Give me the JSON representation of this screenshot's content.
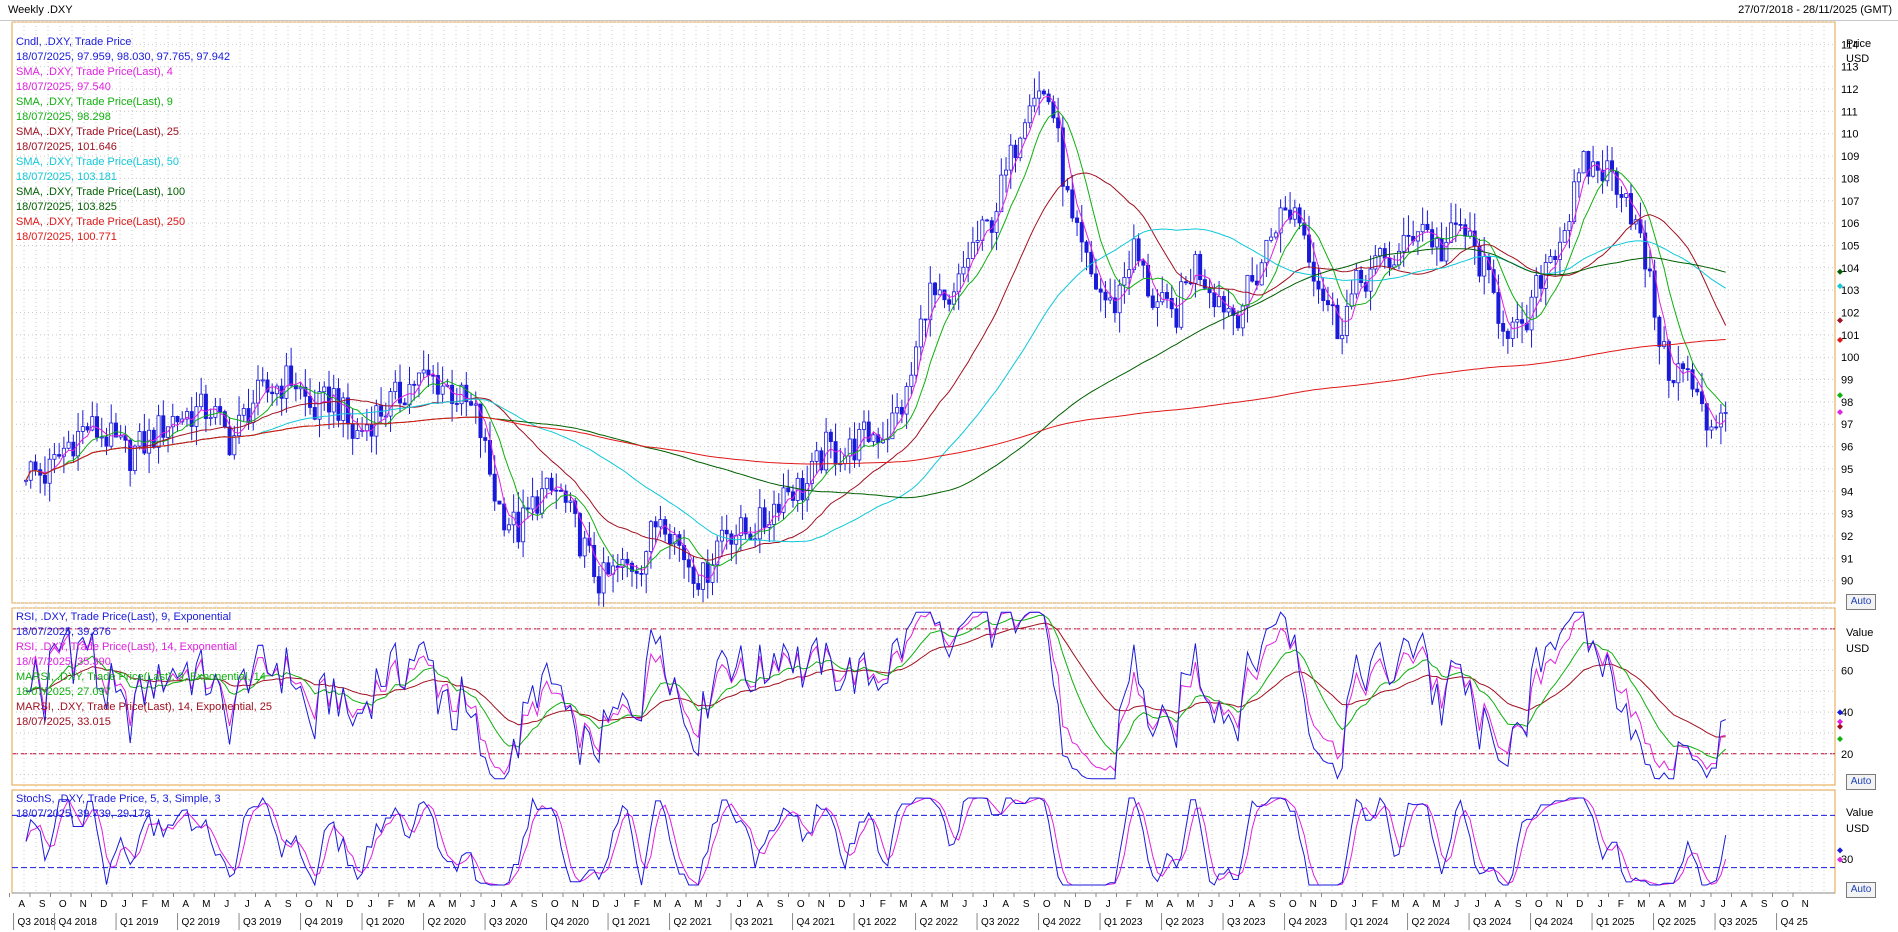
{
  "header": {
    "title": "Weekly .DXY",
    "range": "27/07/2018 - 28/11/2025 (GMT)"
  },
  "auto_label": "Auto",
  "price_panel": {
    "axis_title": "Price",
    "axis_unit": "USD",
    "ticks": [
      "90",
      "91",
      "92",
      "93",
      "94",
      "95",
      "96",
      "97",
      "98",
      "99",
      "100",
      "101",
      "102",
      "103",
      "104",
      "105",
      "106",
      "107",
      "108",
      "109",
      "110",
      "111",
      "112",
      "113",
      "114"
    ],
    "legend": [
      {
        "name": "Cndl, .DXY, Trade Price",
        "value": "18/07/2025, 97.959, 98.030, 97.765, 97.942",
        "color": "#1a1adb",
        "vcolor": "#1a1adb"
      },
      {
        "name": "SMA, .DXY, Trade Price(Last), 4",
        "value": "18/07/2025, 97.540",
        "color": "#e020e0",
        "vcolor": "#e020e0"
      },
      {
        "name": "SMA, .DXY, Trade Price(Last), 9",
        "value": "18/07/2025, 98.298",
        "color": "#10b010",
        "vcolor": "#10b010"
      },
      {
        "name": "SMA, .DXY, Trade Price(Last), 25",
        "value": "18/07/2025, 101.646",
        "color": "#a01020",
        "vcolor": "#a01020"
      },
      {
        "name": "SMA, .DXY, Trade Price(Last), 50",
        "value": "18/07/2025, 103.181",
        "color": "#10c8d8",
        "vcolor": "#10c8d8"
      },
      {
        "name": "SMA, .DXY, Trade Price(Last), 100",
        "value": "18/07/2025, 103.825",
        "color": "#006000",
        "vcolor": "#006000"
      },
      {
        "name": "SMA, .DXY, Trade Price(Last), 250",
        "value": "18/07/2025, 100.771",
        "color": "#e01818",
        "vcolor": "#e01818"
      }
    ]
  },
  "rsi_panel": {
    "axis_title": "Value",
    "axis_unit": "USD",
    "ticks": [
      "20",
      "40",
      "60"
    ],
    "legend": [
      {
        "name": "RSI, .DXY, Trade Price(Last), 9, Exponential",
        "value": "18/07/2025, 39.876",
        "color": "#1a1adb"
      },
      {
        "name": "RSI, .DXY, Trade Price(Last), 14, Exponential",
        "value": "18/07/2025, 35.390",
        "color": "#e020e0"
      },
      {
        "name": "MARSI, .DXY, Trade Price(Last), 9, Exponential, 14",
        "value": "18/07/2025, 27.097",
        "color": "#10b010"
      },
      {
        "name": "MARSI, .DXY, Trade Price(Last), 14, Exponential, 25",
        "value": "18/07/2025, 33.015",
        "color": "#a01020"
      }
    ]
  },
  "stoch_panel": {
    "axis_title": "Value",
    "axis_unit": "USD",
    "ticks": [
      "30"
    ],
    "legend": [
      {
        "name": "StochS, .DXY, Trade Price, 5, 3, Simple, 3",
        "value": "18/07/2025, 39.739, 29.178",
        "color": "#1a1adb"
      }
    ]
  },
  "x_axis": {
    "months": [
      "A",
      "S",
      "O",
      "N",
      "D",
      "J",
      "F",
      "M",
      "A",
      "M",
      "J",
      "J",
      "A",
      "S",
      "O",
      "N",
      "D",
      "J",
      "F",
      "M",
      "A",
      "M",
      "J",
      "J",
      "A",
      "S",
      "O",
      "N",
      "D",
      "J",
      "F",
      "M",
      "A",
      "M",
      "J",
      "J",
      "A",
      "S",
      "O",
      "N",
      "D",
      "J",
      "F",
      "M",
      "A",
      "M",
      "J",
      "J",
      "A",
      "S",
      "O",
      "N",
      "D",
      "J",
      "F",
      "M",
      "A",
      "M",
      "J",
      "J",
      "A",
      "S",
      "O",
      "N",
      "D",
      "J",
      "F",
      "M",
      "A",
      "M",
      "J",
      "J",
      "A",
      "S",
      "O",
      "N",
      "D",
      "J",
      "F",
      "M",
      "A",
      "M",
      "J",
      "J",
      "A",
      "S",
      "O",
      "N"
    ],
    "quarters": [
      "Q3 2018",
      "Q4 2018",
      "Q1 2019",
      "Q2 2019",
      "Q3 2019",
      "Q4 2019",
      "Q1 2020",
      "Q2 2020",
      "Q3 2020",
      "Q4 2020",
      "Q1 2021",
      "Q2 2021",
      "Q3 2021",
      "Q4 2021",
      "Q1 2022",
      "Q2 2022",
      "Q3 2022",
      "Q4 2022",
      "Q1 2023",
      "Q2 2023",
      "Q3 2023",
      "Q4 2023",
      "Q1 2024",
      "Q2 2024",
      "Q3 2024",
      "Q4 2024",
      "Q1 2025",
      "Q2 2025",
      "Q3 2025",
      "Q4 25"
    ]
  },
  "chart_data": {
    "type": "line",
    "title": "Weekly .DXY",
    "x_range": [
      "27/07/2018",
      "28/11/2025"
    ],
    "ylim_price": [
      89,
      115
    ],
    "price_close_by_month": [
      [
        "2018-08",
        95.0
      ],
      [
        "2018-09",
        94.7
      ],
      [
        "2018-10",
        96.1
      ],
      [
        "2018-11",
        96.9
      ],
      [
        "2018-12",
        96.4
      ],
      [
        "2019-01",
        95.6
      ],
      [
        "2019-02",
        96.3
      ],
      [
        "2019-03",
        97.2
      ],
      [
        "2019-04",
        97.5
      ],
      [
        "2019-05",
        97.7
      ],
      [
        "2019-06",
        96.2
      ],
      [
        "2019-07",
        98.0
      ],
      [
        "2019-08",
        98.6
      ],
      [
        "2019-09",
        99.1
      ],
      [
        "2019-10",
        97.5
      ],
      [
        "2019-11",
        98.3
      ],
      [
        "2019-12",
        96.4
      ],
      [
        "2020-01",
        97.4
      ],
      [
        "2020-02",
        98.1
      ],
      [
        "2020-03",
        99.0
      ],
      [
        "2020-04",
        99.0
      ],
      [
        "2020-05",
        98.3
      ],
      [
        "2020-06",
        97.3
      ],
      [
        "2020-07",
        93.4
      ],
      [
        "2020-08",
        92.2
      ],
      [
        "2020-09",
        93.8
      ],
      [
        "2020-10",
        94.0
      ],
      [
        "2020-11",
        91.9
      ],
      [
        "2020-12",
        89.9
      ],
      [
        "2021-01",
        90.5
      ],
      [
        "2021-02",
        90.9
      ],
      [
        "2021-03",
        93.2
      ],
      [
        "2021-04",
        91.3
      ],
      [
        "2021-05",
        90.0
      ],
      [
        "2021-06",
        92.4
      ],
      [
        "2021-07",
        92.1
      ],
      [
        "2021-08",
        92.6
      ],
      [
        "2021-09",
        94.2
      ],
      [
        "2021-10",
        94.1
      ],
      [
        "2021-11",
        95.9
      ],
      [
        "2021-12",
        95.7
      ],
      [
        "2022-01",
        96.5
      ],
      [
        "2022-02",
        96.7
      ],
      [
        "2022-03",
        98.3
      ],
      [
        "2022-04",
        103.0
      ],
      [
        "2022-05",
        101.8
      ],
      [
        "2022-06",
        104.7
      ],
      [
        "2022-07",
        105.9
      ],
      [
        "2022-08",
        108.7
      ],
      [
        "2022-09",
        112.1
      ],
      [
        "2022-10",
        111.5
      ],
      [
        "2022-11",
        105.9
      ],
      [
        "2022-12",
        103.5
      ],
      [
        "2023-01",
        102.1
      ],
      [
        "2023-02",
        104.9
      ],
      [
        "2023-03",
        102.5
      ],
      [
        "2023-04",
        101.7
      ],
      [
        "2023-05",
        104.3
      ],
      [
        "2023-06",
        102.9
      ],
      [
        "2023-07",
        101.9
      ],
      [
        "2023-08",
        103.6
      ],
      [
        "2023-09",
        106.2
      ],
      [
        "2023-10",
        106.7
      ],
      [
        "2023-11",
        103.5
      ],
      [
        "2023-12",
        101.3
      ],
      [
        "2024-01",
        103.3
      ],
      [
        "2024-02",
        104.2
      ],
      [
        "2024-03",
        104.5
      ],
      [
        "2024-04",
        106.2
      ],
      [
        "2024-05",
        104.7
      ],
      [
        "2024-06",
        105.9
      ],
      [
        "2024-07",
        104.1
      ],
      [
        "2024-08",
        101.7
      ],
      [
        "2024-09",
        100.8
      ],
      [
        "2024-10",
        104.0
      ],
      [
        "2024-11",
        105.7
      ],
      [
        "2024-12",
        108.5
      ],
      [
        "2025-01",
        108.4
      ],
      [
        "2025-02",
        107.6
      ],
      [
        "2025-03",
        104.2
      ],
      [
        "2025-04",
        99.5
      ],
      [
        "2025-05",
        99.3
      ],
      [
        "2025-06",
        96.9
      ],
      [
        "2025-07",
        97.9
      ]
    ],
    "series": [
      {
        "name": "Cndl, .DXY, Trade Price",
        "last": [
          97.959,
          98.03,
          97.765,
          97.942
        ]
      },
      {
        "name": "SMA, .DXY, Trade Price(Last), 4",
        "last": 97.54
      },
      {
        "name": "SMA, .DXY, Trade Price(Last), 9",
        "last": 98.298
      },
      {
        "name": "SMA, .DXY, Trade Price(Last), 25",
        "last": 101.646
      },
      {
        "name": "SMA, .DXY, Trade Price(Last), 50",
        "last": 103.181
      },
      {
        "name": "SMA, .DXY, Trade Price(Last), 100",
        "last": 103.825
      },
      {
        "name": "SMA, .DXY, Trade Price(Last), 250",
        "last": 100.771
      },
      {
        "name": "RSI, .DXY, Trade Price(Last), 9, Exponential",
        "last": 39.876
      },
      {
        "name": "RSI, .DXY, Trade Price(Last), 14, Exponential",
        "last": 35.39
      },
      {
        "name": "MARSI, .DXY, Trade Price(Last), 9, Exponential, 14",
        "last": 27.097
      },
      {
        "name": "MARSI, .DXY, Trade Price(Last), 14, Exponential, 25",
        "last": 33.015
      },
      {
        "name": "StochS, .DXY, Trade Price, 5, 3, Simple, 3",
        "last": [
          39.739,
          29.178
        ]
      }
    ],
    "rsi_levels": [
      20,
      80
    ],
    "stoch_levels": [
      20,
      80
    ],
    "grid": true
  }
}
